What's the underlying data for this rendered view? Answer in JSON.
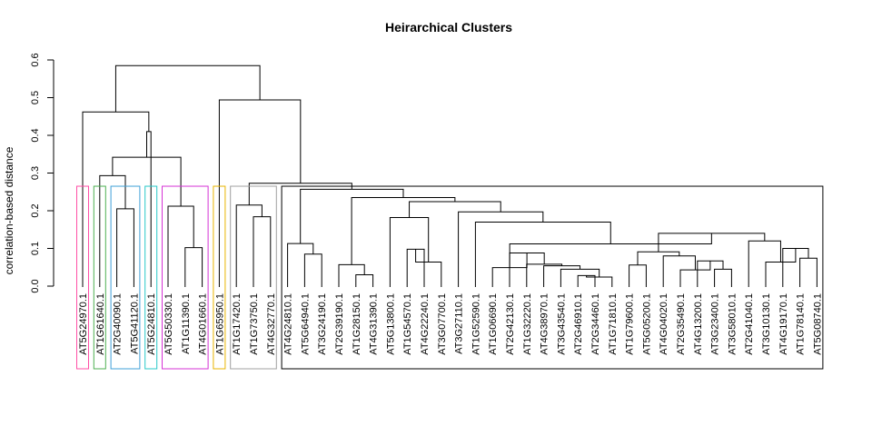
{
  "chart_data": {
    "type": "dendrogram",
    "title": "Heirarchical Clusters",
    "ylabel": "correlation-based distance",
    "ylim": [
      0,
      0.6
    ],
    "yticks": [
      "0.0",
      "0.1",
      "0.2",
      "0.3",
      "0.4",
      "0.5",
      "0.6"
    ],
    "cut_height": 0.265,
    "leaves": [
      "AT5G24970.1",
      "AT1G61640.1",
      "AT2G40090.1",
      "AT5G41120.1",
      "AT5G24810.1",
      "AT5G50330.1",
      "AT1G11390.1",
      "AT4G01660.1",
      "AT1G65950.1",
      "AT1G17420.1",
      "AT1G73750.1",
      "AT4G32770.1",
      "AT4G24810.1",
      "AT5G64940.1",
      "AT3G24190.1",
      "AT2G39190.1",
      "AT1G28150.1",
      "AT4G31390.1",
      "AT5G13800.1",
      "AT1G54570.1",
      "AT4G22240.1",
      "AT3G07700.1",
      "AT3G27110.1",
      "AT1G52590.1",
      "AT1G06690.1",
      "AT2G42130.1",
      "AT1G32220.1",
      "AT4G38970.1",
      "AT3G43540.1",
      "AT2G46910.1",
      "AT2G34460.1",
      "AT1G71810.1",
      "AT1G79600.1",
      "AT5G05200.1",
      "AT4G04020.1",
      "AT2G35490.1",
      "AT4G13200.1",
      "AT3G23400.1",
      "AT3G58010.1",
      "AT2G41040.1",
      "AT3G10130.1",
      "AT4G19170.1",
      "AT1G78140.1",
      "AT5G08740.1"
    ],
    "merges": [
      [
        -20,
        -21,
        0.098
      ],
      [
        -22,
        1,
        0.064
      ],
      [
        -19,
        2,
        0.182
      ],
      [
        -17,
        -18,
        0.03
      ],
      [
        -16,
        4,
        0.057
      ],
      [
        -30,
        -31,
        0.028
      ],
      [
        -32,
        6,
        0.024
      ],
      [
        -29,
        7,
        0.045
      ],
      [
        -28,
        8,
        0.054
      ],
      [
        -27,
        9,
        0.058
      ],
      [
        -26,
        10,
        0.088
      ],
      [
        -25,
        11,
        0.049
      ],
      [
        -38,
        -39,
        0.045
      ],
      [
        -37,
        13,
        0.067
      ],
      [
        -36,
        14,
        0.043
      ],
      [
        -35,
        15,
        0.08
      ],
      [
        -33,
        -34,
        0.056
      ],
      [
        17,
        16,
        0.091
      ],
      [
        -43,
        -44,
        0.074
      ],
      [
        -42,
        19,
        0.1
      ],
      [
        -41,
        20,
        0.064
      ],
      [
        -40,
        21,
        0.12
      ],
      [
        18,
        22,
        0.14
      ],
      [
        12,
        23,
        0.112
      ],
      [
        -24,
        24,
        0.17
      ],
      [
        -23,
        25,
        0.197
      ],
      [
        3,
        26,
        0.224
      ],
      [
        5,
        27,
        0.235
      ],
      [
        -14,
        -15,
        0.085
      ],
      [
        -13,
        29,
        0.113
      ],
      [
        28,
        30,
        0.257
      ],
      [
        -11,
        -12,
        0.184
      ],
      [
        -10,
        32,
        0.215
      ],
      [
        31,
        33,
        0.273
      ],
      [
        -9,
        34,
        0.494
      ],
      [
        -7,
        -8,
        0.102
      ],
      [
        -6,
        36,
        0.212
      ],
      [
        -3,
        -4,
        0.205
      ],
      [
        -2,
        38,
        0.293
      ],
      [
        39,
        37,
        0.342
      ],
      [
        -5,
        40,
        0.41
      ],
      [
        -1,
        41,
        0.462
      ],
      [
        35,
        42,
        0.585
      ]
    ],
    "cluster_boxes": [
      {
        "from": 1,
        "to": 1,
        "color": "#ff4fa6"
      },
      {
        "from": 2,
        "to": 2,
        "color": "#4caf50"
      },
      {
        "from": 3,
        "to": 4,
        "color": "#3fa0d8"
      },
      {
        "from": 5,
        "to": 5,
        "color": "#28c8c8"
      },
      {
        "from": 6,
        "to": 8,
        "color": "#d633d6"
      },
      {
        "from": 9,
        "to": 9,
        "color": "#e8b400"
      },
      {
        "from": 10,
        "to": 12,
        "color": "#a0a0a0"
      },
      {
        "from": 13,
        "to": 44,
        "color": "#000000"
      }
    ]
  }
}
